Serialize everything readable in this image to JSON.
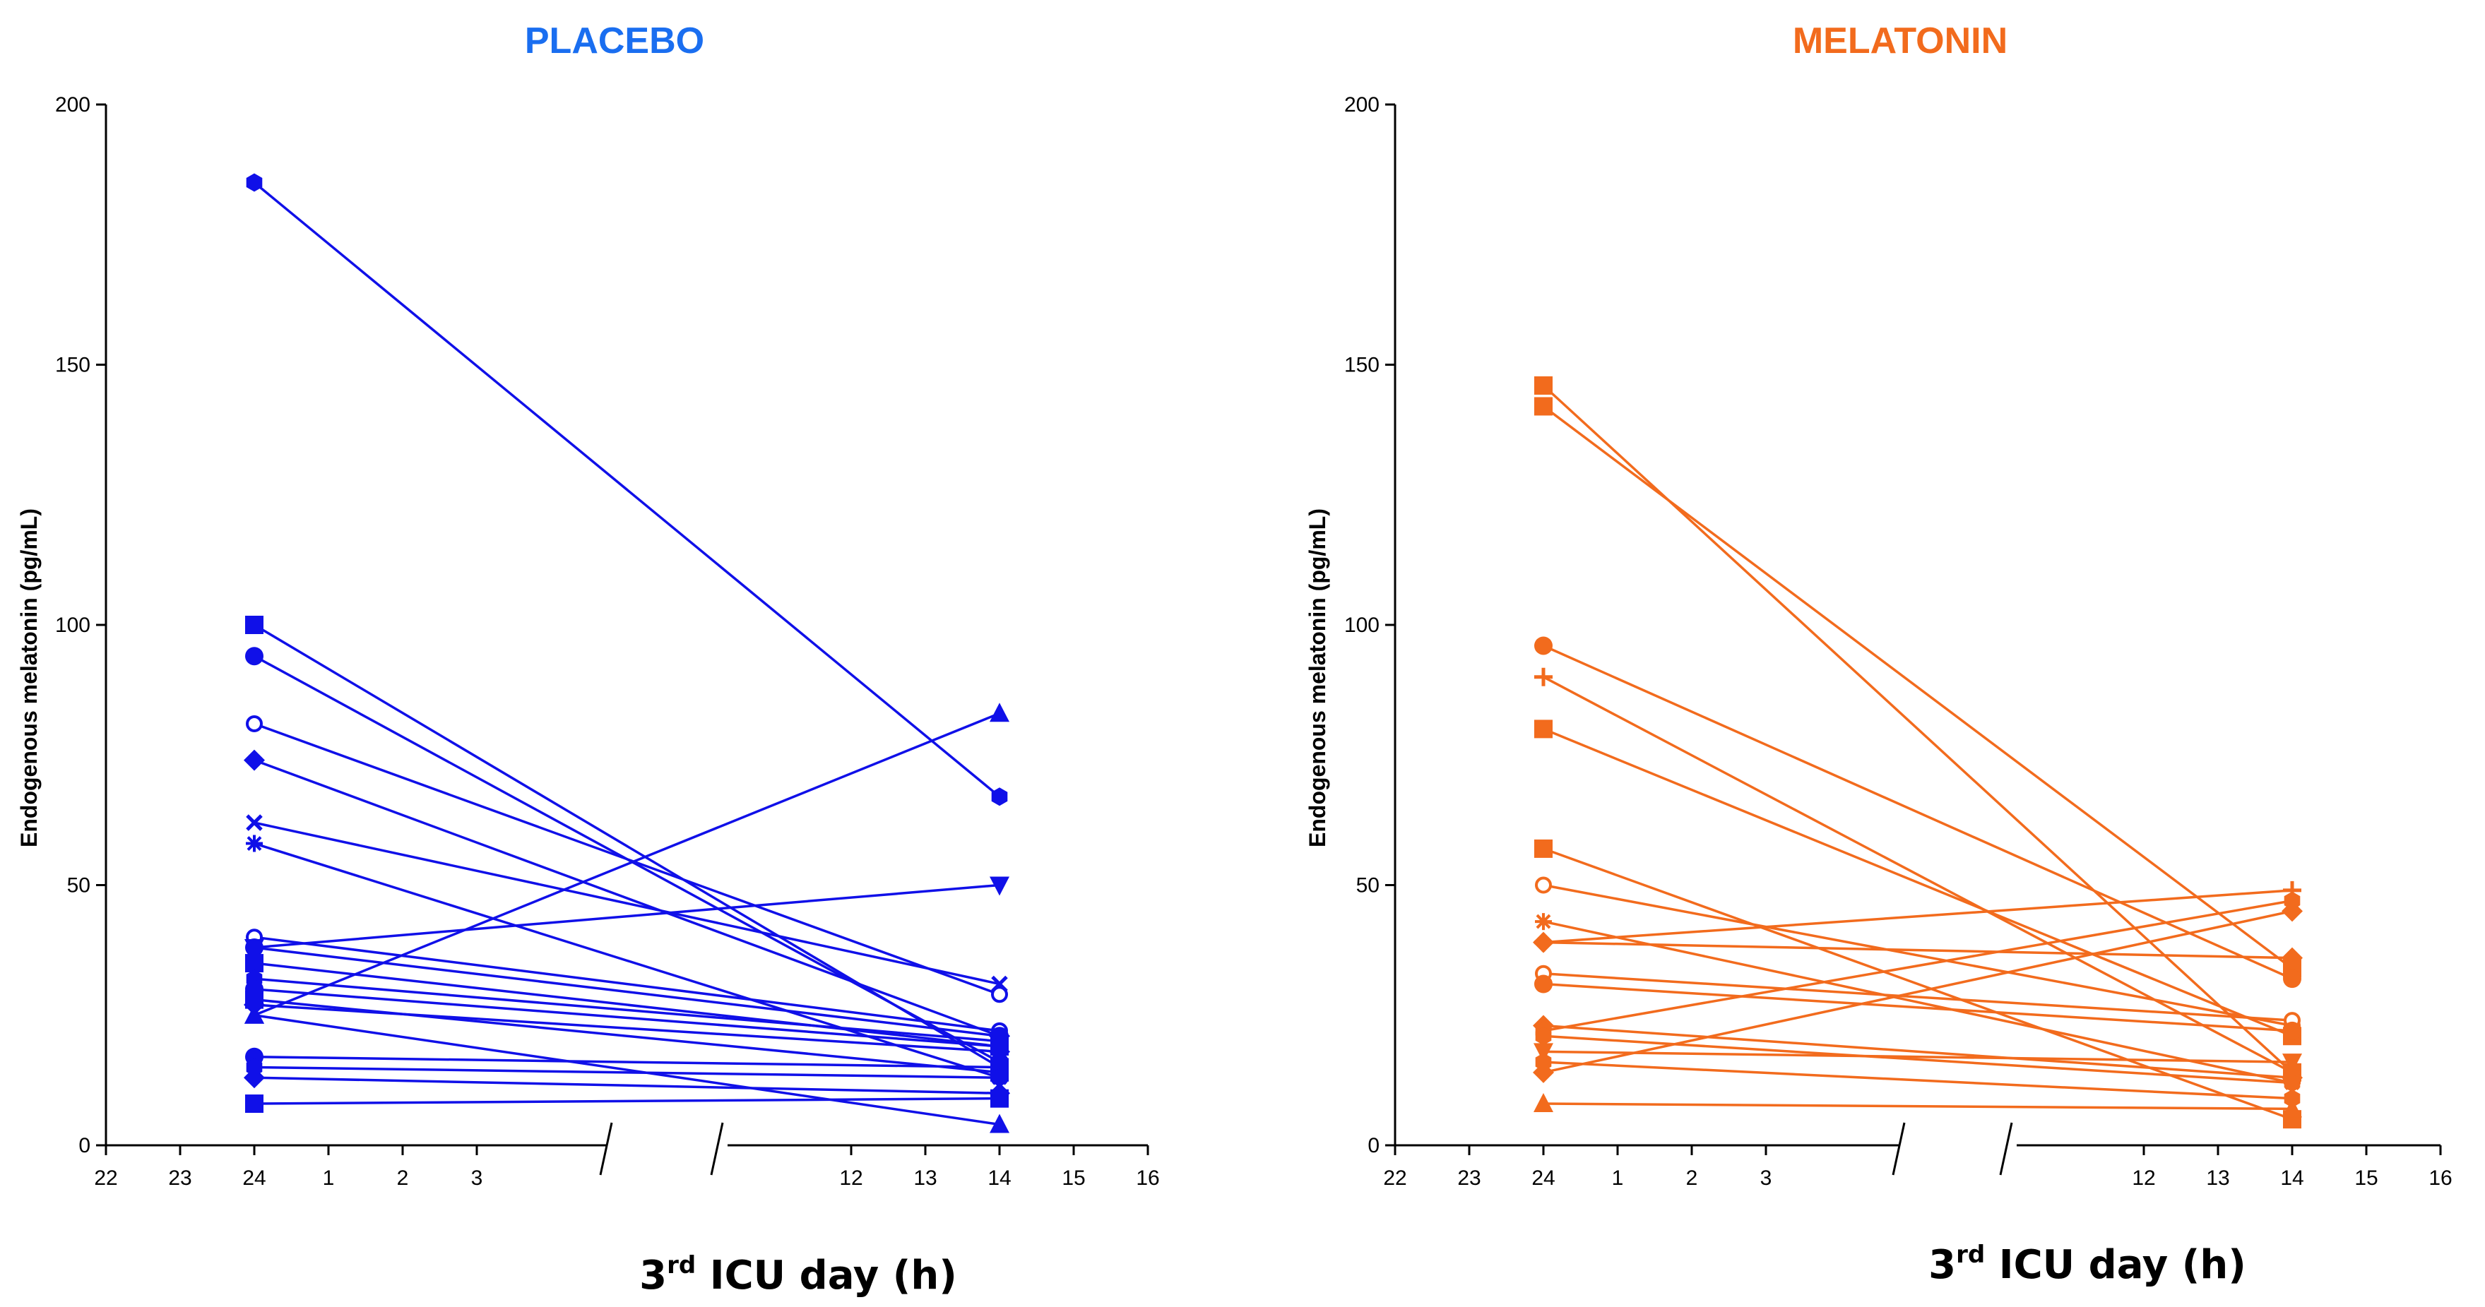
{
  "chart_data": [
    {
      "type": "line",
      "panel": "placebo",
      "title": "PLACEBO",
      "color": "#1010e8",
      "title_color": "#1a6ef0",
      "xlabel_prefix": "3",
      "xlabel_sup": "rd",
      "xlabel_suffix": " ICU day (h)",
      "ylabel": "Endogenous melatonin (pg/mL)",
      "ylim": [
        0,
        200
      ],
      "y_ticks": [
        "0",
        "50",
        "100",
        "150",
        "200"
      ],
      "x_ticks_left": [
        "22",
        "23",
        "24",
        "1",
        "2",
        "3"
      ],
      "x_ticks_right": [
        "12",
        "13",
        "14",
        "15",
        "16"
      ],
      "x_categories": [
        "24",
        "14"
      ],
      "series": [
        {
          "values": [
            185,
            67
          ],
          "marker": "hexagon"
        },
        {
          "values": [
            100,
            15
          ],
          "marker": "square"
        },
        {
          "values": [
            94,
            16
          ],
          "marker": "circle"
        },
        {
          "values": [
            81,
            29
          ],
          "marker": "ring"
        },
        {
          "values": [
            74,
            21
          ],
          "marker": "diamond"
        },
        {
          "values": [
            62,
            31
          ],
          "marker": "x"
        },
        {
          "values": [
            58,
            13
          ],
          "marker": "star"
        },
        {
          "values": [
            40,
            22
          ],
          "marker": "ring"
        },
        {
          "values": [
            38,
            50
          ],
          "marker": "triangle-down"
        },
        {
          "values": [
            38,
            21
          ],
          "marker": "circle"
        },
        {
          "values": [
            35,
            19
          ],
          "marker": "square"
        },
        {
          "values": [
            32,
            20
          ],
          "marker": "hexagon"
        },
        {
          "values": [
            30,
            19
          ],
          "marker": "circle"
        },
        {
          "values": [
            28,
            14
          ],
          "marker": "square"
        },
        {
          "values": [
            27,
            18
          ],
          "marker": "diamond"
        },
        {
          "values": [
            25,
            83
          ],
          "marker": "triangle"
        },
        {
          "values": [
            25,
            4
          ],
          "marker": "triangle"
        },
        {
          "values": [
            17,
            15
          ],
          "marker": "circle"
        },
        {
          "values": [
            15,
            13
          ],
          "marker": "hexagon"
        },
        {
          "values": [
            13,
            10
          ],
          "marker": "diamond"
        },
        {
          "values": [
            8,
            9
          ],
          "marker": "square"
        }
      ]
    },
    {
      "type": "line",
      "panel": "melatonin",
      "title": "MELATONIN",
      "color": "#f26b1d",
      "title_color": "#f26b1d",
      "xlabel_prefix": "3",
      "xlabel_sup": "rd",
      "xlabel_suffix": " ICU day (h)",
      "ylabel": "Endogenous melatonin (pg/mL)",
      "ylim": [
        0,
        200
      ],
      "y_ticks": [
        "0",
        "50",
        "100",
        "150",
        "200"
      ],
      "x_ticks_left": [
        "22",
        "23",
        "24",
        "1",
        "2",
        "3"
      ],
      "x_ticks_right": [
        "12",
        "13",
        "14",
        "15",
        "16"
      ],
      "x_categories": [
        "24",
        "14"
      ],
      "series": [
        {
          "values": [
            146,
            14
          ],
          "marker": "square"
        },
        {
          "values": [
            142,
            34
          ],
          "marker": "square"
        },
        {
          "values": [
            96,
            32
          ],
          "marker": "circle"
        },
        {
          "values": [
            90,
            14
          ],
          "marker": "plus"
        },
        {
          "values": [
            80,
            21
          ],
          "marker": "square"
        },
        {
          "values": [
            57,
            5
          ],
          "marker": "square"
        },
        {
          "values": [
            50,
            23
          ],
          "marker": "ring"
        },
        {
          "values": [
            43,
            12
          ],
          "marker": "star"
        },
        {
          "values": [
            39,
            36
          ],
          "marker": "diamond"
        },
        {
          "values": [
            39,
            49
          ],
          "marker": "plus"
        },
        {
          "values": [
            33,
            24
          ],
          "marker": "ring"
        },
        {
          "values": [
            31,
            22
          ],
          "marker": "circle"
        },
        {
          "values": [
            23,
            13
          ],
          "marker": "diamond"
        },
        {
          "values": [
            22,
            47
          ],
          "marker": "hexagon"
        },
        {
          "values": [
            21,
            12
          ],
          "marker": "hexagon"
        },
        {
          "values": [
            18,
            16
          ],
          "marker": "triangle-down"
        },
        {
          "values": [
            16,
            9
          ],
          "marker": "hexagon"
        },
        {
          "values": [
            14,
            45
          ],
          "marker": "diamond"
        },
        {
          "values": [
            8,
            7
          ],
          "marker": "triangle"
        }
      ]
    }
  ]
}
